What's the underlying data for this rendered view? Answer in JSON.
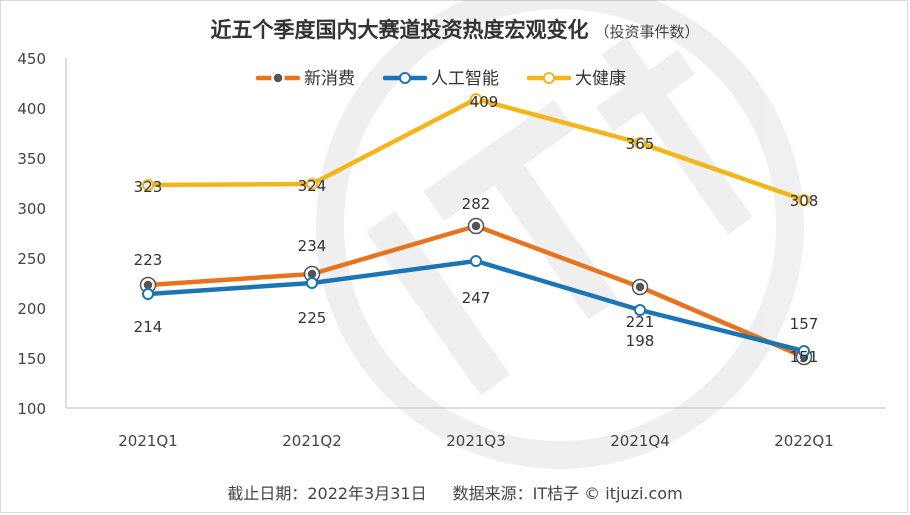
{
  "title": "近五个季度国内大赛道投资热度宏观变化",
  "subtitle": "（投资事件数）",
  "footer": {
    "date": "截止日期：2022年3月31日",
    "source": "数据来源：IT桔子 © itjuzi.com"
  },
  "watermark": "IT桔子 ITJUZI.COM",
  "chart_data": {
    "type": "line",
    "categories": [
      "2021Q1",
      "2021Q2",
      "2021Q3",
      "2021Q4",
      "2022Q1"
    ],
    "ylim": [
      100,
      450
    ],
    "yticks": [
      100,
      150,
      200,
      250,
      300,
      350,
      400,
      450
    ],
    "grid": false,
    "legend_position": "top-center",
    "series": [
      {
        "name": "新消费",
        "color": "#E8731E",
        "values": [
          223,
          234,
          282,
          221,
          151
        ]
      },
      {
        "name": "人工智能",
        "color": "#1B75B4",
        "values": [
          214,
          225,
          247,
          198,
          157
        ]
      },
      {
        "name": "大健康",
        "color": "#F2B61B",
        "values": [
          323,
          324,
          409,
          365,
          308
        ]
      }
    ]
  }
}
